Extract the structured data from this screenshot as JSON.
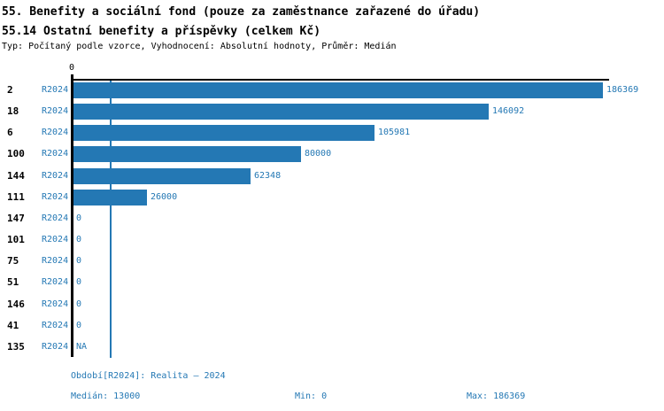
{
  "header": {
    "title_line1": "55. Benefity a sociální fond (pouze za zaměstnance zařazené do úřadu)",
    "title_line2": "55.14 Ostatní benefity a příspěvky (celkem Kč)",
    "meta": "Typ: Počítaný podle vzorce, Vyhodnocení: Absolutní hodnoty, Průměr: Medián"
  },
  "colors": {
    "accent_blue": "#2478b4",
    "text_black": "#000000"
  },
  "chart_data": {
    "type": "bar",
    "orientation": "horizontal",
    "zero_tick": "0",
    "xlim": [
      0,
      188600
    ],
    "median_line_value": 13000,
    "bar_color": "#2478b4",
    "series_name": "R2024",
    "categories": [
      "2",
      "18",
      "6",
      "100",
      "144",
      "111",
      "147",
      "101",
      "75",
      "51",
      "146",
      "41",
      "135"
    ],
    "rows": [
      {
        "category": "2",
        "period": "R2024",
        "value": 186369,
        "value_label": "186369"
      },
      {
        "category": "18",
        "period": "R2024",
        "value": 146092,
        "value_label": "146092"
      },
      {
        "category": "6",
        "period": "R2024",
        "value": 105981,
        "value_label": "105981"
      },
      {
        "category": "100",
        "period": "R2024",
        "value": 80000,
        "value_label": "80000"
      },
      {
        "category": "144",
        "period": "R2024",
        "value": 62348,
        "value_label": "62348"
      },
      {
        "category": "111",
        "period": "R2024",
        "value": 26000,
        "value_label": "26000"
      },
      {
        "category": "147",
        "period": "R2024",
        "value": 0,
        "value_label": "0"
      },
      {
        "category": "101",
        "period": "R2024",
        "value": 0,
        "value_label": "0"
      },
      {
        "category": "75",
        "period": "R2024",
        "value": 0,
        "value_label": "0"
      },
      {
        "category": "51",
        "period": "R2024",
        "value": 0,
        "value_label": "0"
      },
      {
        "category": "146",
        "period": "R2024",
        "value": 0,
        "value_label": "0"
      },
      {
        "category": "41",
        "period": "R2024",
        "value": 0,
        "value_label": "0"
      },
      {
        "category": "135",
        "period": "R2024",
        "value": null,
        "value_label": "NA"
      }
    ],
    "stats": {
      "median": 13000,
      "min": 0,
      "max": 186369
    }
  },
  "footer": {
    "period_info": "Období[R2024]: Realita – 2024",
    "median_label": "Medián: 13000",
    "min_label": "Min: 0",
    "max_label": "Max: 186369"
  }
}
